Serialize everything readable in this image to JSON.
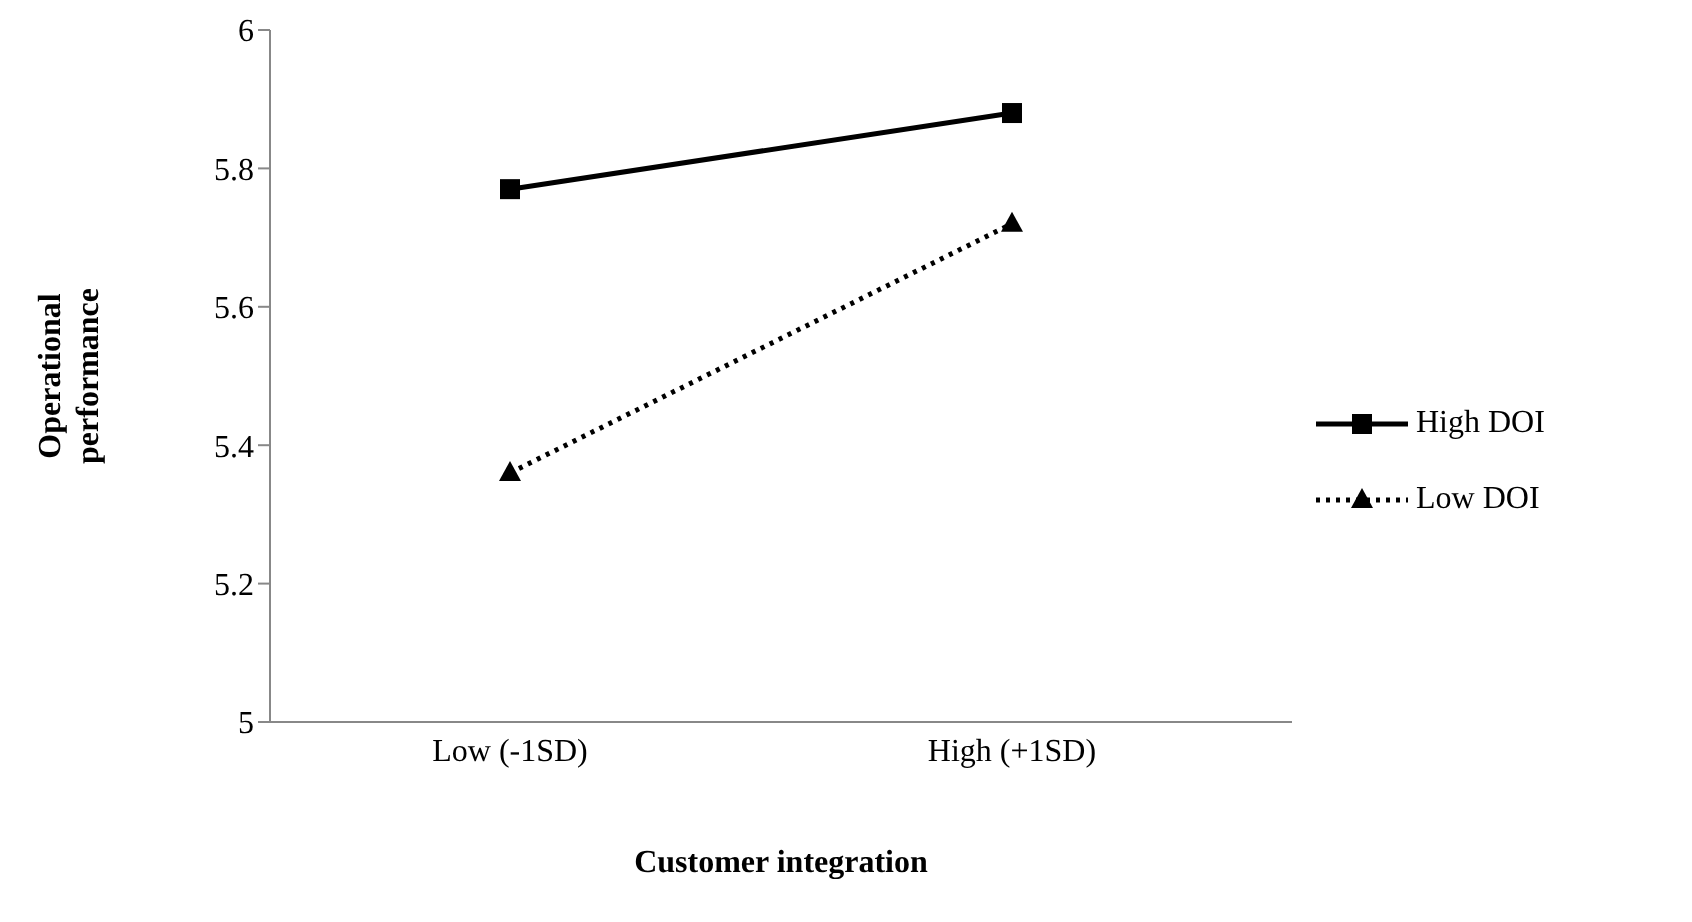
{
  "chart_data": {
    "type": "line",
    "xlabel": "Customer integration",
    "ylabel": "Operational performance",
    "categories": [
      "Low (-1SD)",
      "High (+1SD)"
    ],
    "series": [
      {
        "name": "High DOI",
        "color": "#000000",
        "values": [
          5.77,
          5.88
        ],
        "marker": "square",
        "line_style": "solid"
      },
      {
        "name": "Low DOI",
        "color": "#000000",
        "values": [
          5.36,
          5.72
        ],
        "marker": "triangle",
        "line_style": "dotted"
      }
    ],
    "ylim": [
      5,
      6
    ],
    "yticks": [
      5,
      5.2,
      5.4,
      5.6,
      5.8,
      6
    ],
    "grid": false,
    "legend": "right"
  }
}
